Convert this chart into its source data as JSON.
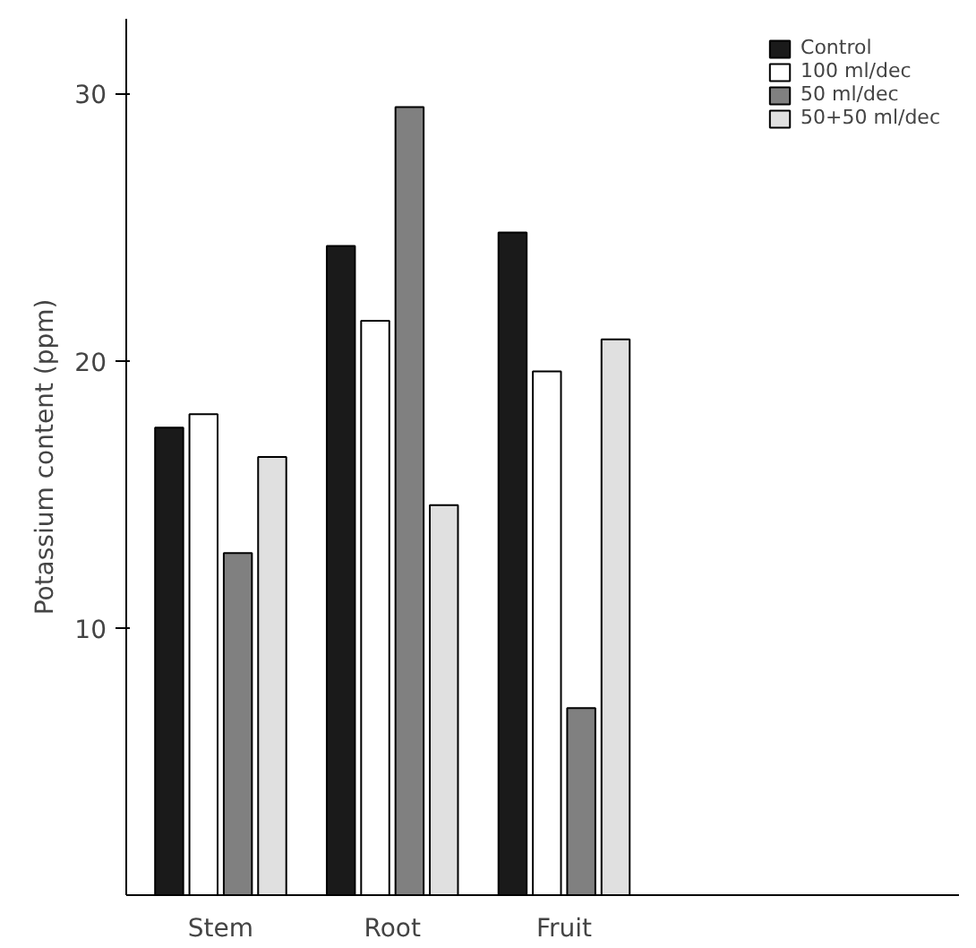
{
  "chart_data": {
    "type": "bar",
    "ylabel": "Potassium content (ppm)",
    "categories": [
      "Stem",
      "Root",
      "Fruit"
    ],
    "series": [
      {
        "name": "Control",
        "color": "#1a1a1a",
        "values": [
          17.5,
          24.3,
          24.8
        ]
      },
      {
        "name": "100 ml/dec",
        "color": "#ffffff",
        "values": [
          18.0,
          21.5,
          19.6
        ]
      },
      {
        "name": "50 ml/dec",
        "color": "#808080",
        "values": [
          12.8,
          29.5,
          7.0
        ]
      },
      {
        "name": "50+50 ml/dec",
        "color": "#e0e0e0",
        "values": [
          16.4,
          14.6,
          20.8
        ]
      }
    ],
    "ylim": [
      0,
      32.8
    ],
    "yticks": [
      10,
      20,
      30
    ],
    "grid": false,
    "legend": "top right"
  }
}
